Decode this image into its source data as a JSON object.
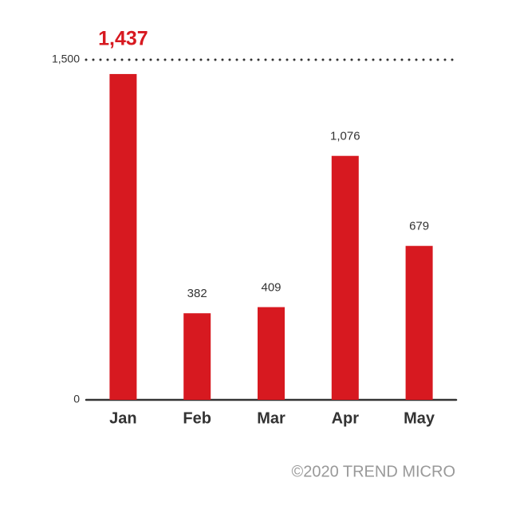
{
  "chart_data": {
    "type": "bar",
    "categories": [
      "Jan",
      "Feb",
      "Mar",
      "Apr",
      "May"
    ],
    "values": [
      1437,
      382,
      409,
      1076,
      679
    ],
    "value_labels": [
      "1,437",
      "382",
      "409",
      "1,076",
      "679"
    ],
    "color": "#d71920",
    "ylim": [
      0,
      1500
    ],
    "yticks": [
      0,
      {
        "value": 1500,
        "label": "1,500"
      }
    ],
    "grid": true,
    "footer": "©2020 TREND MICRO"
  }
}
